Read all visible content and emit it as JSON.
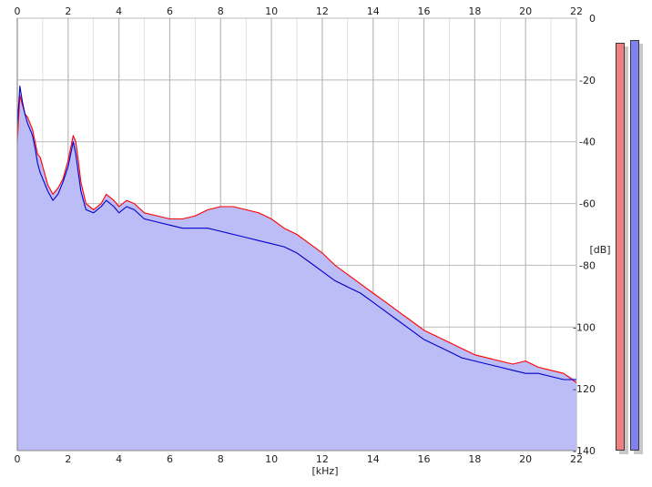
{
  "chart_data": {
    "type": "area",
    "xlabel": "[kHz]",
    "ylabel": "[dB]",
    "xlim": [
      0,
      22
    ],
    "ylim": [
      -140,
      0
    ],
    "x_ticks": [
      0,
      2,
      4,
      6,
      8,
      10,
      12,
      14,
      16,
      18,
      20,
      22
    ],
    "x_tick_labels": [
      "0",
      "2",
      "4",
      "6",
      "8",
      "10",
      "12",
      "14",
      "16",
      "18",
      "20",
      "22"
    ],
    "y_ticks": [
      0,
      -20,
      -40,
      -60,
      -80,
      -100,
      -120,
      -140
    ],
    "y_tick_labels": [
      "0",
      "-20",
      "-40",
      "-60",
      "-80",
      "-100",
      "-120",
      "-140"
    ],
    "grid": true,
    "x_major_grid": [
      0,
      2,
      4,
      6,
      8,
      10,
      12,
      14,
      16,
      18,
      20,
      22
    ],
    "x_minor_grid_step": 1,
    "background": "#ffffff",
    "grid_color": "#b9b9b9",
    "fill_color": "#bcbcf6",
    "series": [
      {
        "color": "#ff0000",
        "x": [
          0.0,
          0.1,
          0.2,
          0.3,
          0.4,
          0.5,
          0.6,
          0.7,
          0.8,
          0.9,
          1.0,
          1.2,
          1.4,
          1.6,
          1.8,
          2.0,
          2.1,
          2.2,
          2.3,
          2.4,
          2.5,
          2.7,
          3.0,
          3.3,
          3.5,
          3.8,
          4.0,
          4.3,
          4.6,
          5.0,
          5.5,
          6.0,
          6.5,
          7.0,
          7.5,
          8.0,
          8.5,
          9.0,
          9.5,
          10.0,
          10.5,
          11.0,
          11.5,
          12.0,
          12.5,
          13.0,
          13.5,
          14.0,
          14.5,
          15.0,
          15.5,
          16.0,
          16.5,
          17.0,
          17.5,
          18.0,
          18.5,
          19.0,
          19.5,
          20.0,
          20.5,
          21.0,
          21.5,
          22.0
        ],
        "y": [
          -40,
          -25,
          -28,
          -31,
          -32,
          -34,
          -36,
          -40,
          -44,
          -45,
          -48,
          -54,
          -57,
          -55,
          -52,
          -46,
          -42,
          -38,
          -40,
          -46,
          -53,
          -60,
          -62,
          -60,
          -57,
          -59,
          -61,
          -59,
          -60,
          -63,
          -64,
          -65,
          -65,
          -64,
          -62,
          -61,
          -61,
          -62,
          -63,
          -65,
          -68,
          -70,
          -73,
          -76,
          -80,
          -83,
          -86,
          -89,
          -92,
          -95,
          -98,
          -101,
          -103,
          -105,
          -107,
          -109,
          -110,
          -111,
          -112,
          -111,
          -113,
          -114,
          -115,
          -118
        ]
      },
      {
        "color": "#0000cc",
        "x": [
          0.0,
          0.1,
          0.2,
          0.3,
          0.4,
          0.5,
          0.6,
          0.7,
          0.8,
          0.9,
          1.0,
          1.2,
          1.4,
          1.6,
          1.8,
          2.0,
          2.1,
          2.2,
          2.3,
          2.4,
          2.5,
          2.7,
          3.0,
          3.3,
          3.5,
          3.8,
          4.0,
          4.3,
          4.6,
          5.0,
          5.5,
          6.0,
          6.5,
          7.0,
          7.5,
          8.0,
          8.5,
          9.0,
          9.5,
          10.0,
          10.5,
          11.0,
          11.5,
          12.0,
          12.5,
          13.0,
          13.5,
          14.0,
          14.5,
          15.0,
          15.5,
          16.0,
          16.5,
          17.0,
          17.5,
          18.0,
          18.5,
          19.0,
          19.5,
          20.0,
          20.5,
          21.0,
          21.5,
          22.0
        ],
        "y": [
          -35,
          -22,
          -27,
          -31,
          -34,
          -36,
          -38,
          -42,
          -47,
          -50,
          -52,
          -56,
          -59,
          -57,
          -53,
          -48,
          -44,
          -40,
          -44,
          -50,
          -56,
          -62,
          -63,
          -61,
          -59,
          -61,
          -63,
          -61,
          -62,
          -65,
          -66,
          -67,
          -68,
          -68,
          -68,
          -69,
          -70,
          -71,
          -72,
          -73,
          -74,
          -76,
          -79,
          -82,
          -85,
          -87,
          -89,
          -92,
          -95,
          -98,
          -101,
          -104,
          -106,
          -108,
          -110,
          -111,
          -112,
          -113,
          -114,
          -115,
          -115,
          -116,
          -117,
          -117
        ]
      }
    ],
    "level_meters": [
      {
        "color": "#f08080",
        "level_db": -8
      },
      {
        "color": "#8080f0",
        "level_db": -7
      }
    ]
  }
}
